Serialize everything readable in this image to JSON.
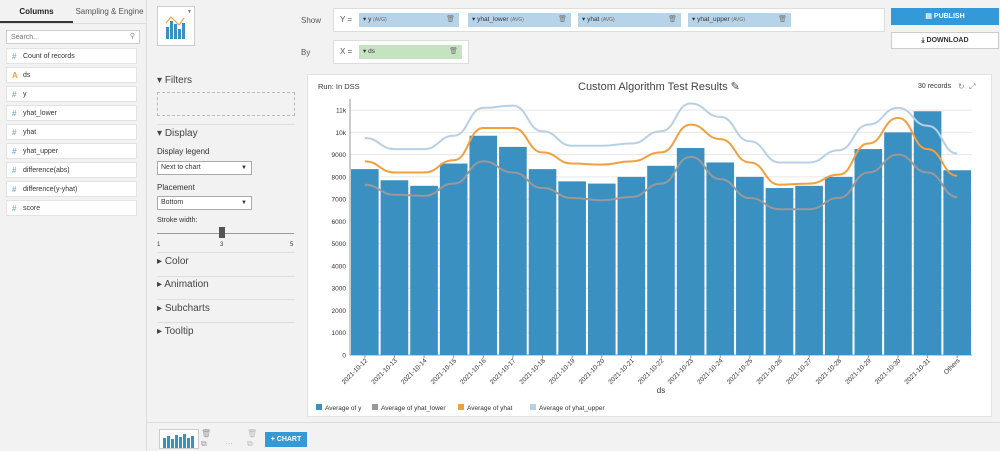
{
  "left_panel": {
    "tabs": [
      "Columns",
      "Sampling & Engine"
    ],
    "search_placeholder": "Search...",
    "columns": [
      {
        "type": "#",
        "name": "Count of records"
      },
      {
        "type": "A",
        "name": "ds"
      },
      {
        "type": "#",
        "name": "y"
      },
      {
        "type": "#",
        "name": "yhat_lower"
      },
      {
        "type": "#",
        "name": "yhat"
      },
      {
        "type": "#",
        "name": "yhat_upper"
      },
      {
        "type": "#",
        "name": "difference(abs)"
      },
      {
        "type": "#",
        "name": "difference(y-yhat)"
      },
      {
        "type": "#",
        "name": "score"
      }
    ]
  },
  "mid_panel": {
    "filters_label": "Filters",
    "display_label": "Display",
    "display_legend_label": "Display legend",
    "display_legend_value": "Next to chart",
    "placement_label": "Placement",
    "placement_value": "Bottom",
    "stroke_label": "Stroke width:",
    "stroke_min": "1",
    "stroke_value": "3",
    "stroke_max": "5",
    "color_label": "Color",
    "animation_label": "Animation",
    "subcharts_label": "Subcharts",
    "tooltip_label": "Tooltip"
  },
  "shelves": {
    "show_label": "Show",
    "by_label": "By",
    "y_tag": "Y",
    "x_tag": "X",
    "y_pills": [
      {
        "name": "y",
        "agg": "(AVG)"
      },
      {
        "name": "yhat_lower",
        "agg": "(AVG)"
      },
      {
        "name": "yhat",
        "agg": "(AVG)"
      },
      {
        "name": "yhat_upper",
        "agg": "(AVG)"
      }
    ],
    "x_pill": "ds"
  },
  "buttons": {
    "publish": "PUBLISH",
    "download": "DOWNLOAD",
    "add_chart": "CHART"
  },
  "chart_header": {
    "run_label": "Run: In DSS",
    "title": "Custom Algorithm Test Results",
    "records": "30 records"
  },
  "colors": {
    "y": "#3a90c0",
    "yhat_lower": "#999999",
    "yhat": "#f0a040",
    "yhat_upper": "#b8d0e6",
    "accent": "#3399d9"
  },
  "chart_data": {
    "type": "bar",
    "title": "Custom Algorithm Test Results",
    "xlabel": "ds",
    "ylabel": "",
    "ylim": [
      0,
      11500
    ],
    "y_ticks": [
      0,
      1000,
      2000,
      3000,
      4000,
      5000,
      6000,
      7000,
      8000,
      9000,
      "10k",
      "11k"
    ],
    "categories": [
      "2021-10-12",
      "2021-10-13",
      "2021-10-14",
      "2021-10-15",
      "2021-10-16",
      "2021-10-17",
      "2021-10-18",
      "2021-10-19",
      "2021-10-20",
      "2021-10-21",
      "2021-10-22",
      "2021-10-23",
      "2021-10-24",
      "2021-10-25",
      "2021-10-26",
      "2021-10-27",
      "2021-10-28",
      "2021-10-29",
      "2021-10-30",
      "2021-10-31",
      "Others"
    ],
    "series": [
      {
        "name": "Average of y",
        "kind": "bar",
        "values": [
          8350,
          7850,
          7600,
          8600,
          9850,
          9350,
          8350,
          7800,
          7700,
          8000,
          8500,
          9300,
          8650,
          8000,
          7500,
          7600,
          8000,
          9250,
          10000,
          10950,
          8300
        ]
      },
      {
        "name": "Average of yhat_lower",
        "kind": "line",
        "values": [
          7650,
          7200,
          7150,
          7700,
          8700,
          8200,
          7500,
          7050,
          6950,
          7100,
          7700,
          8900,
          7900,
          7050,
          6550,
          6550,
          7050,
          8200,
          9000,
          8200,
          7100
        ]
      },
      {
        "name": "Average of yhat",
        "kind": "line",
        "values": [
          8700,
          8200,
          8200,
          8750,
          10200,
          10200,
          9100,
          8600,
          8550,
          8700,
          9100,
          10350,
          9700,
          8650,
          7650,
          7700,
          8100,
          9500,
          10650,
          9250,
          8050
        ]
      },
      {
        "name": "Average of yhat_upper",
        "kind": "line",
        "values": [
          9750,
          9250,
          9250,
          9850,
          11100,
          11200,
          10050,
          9400,
          9400,
          9500,
          10050,
          11300,
          10700,
          9600,
          8650,
          8650,
          9200,
          10350,
          11100,
          10300,
          9050
        ]
      }
    ],
    "legend": [
      "Average of y",
      "Average of yhat_lower",
      "Average of yhat",
      "Average of yhat_upper"
    ],
    "legend_position": "bottom"
  }
}
